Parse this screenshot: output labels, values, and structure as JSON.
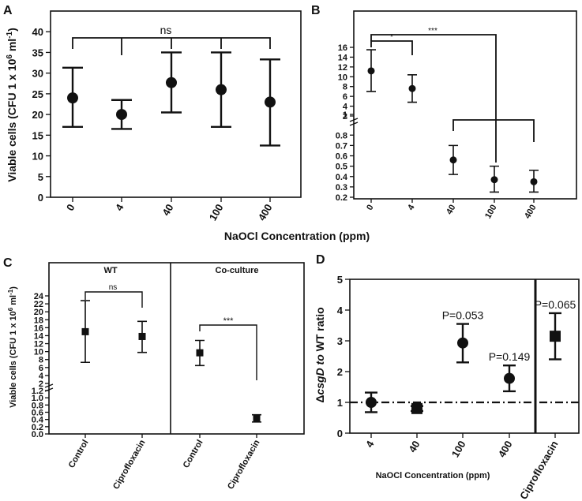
{
  "chart_data": [
    {
      "panel": "A",
      "type": "scatter",
      "ylabel": "Viable cells (CFU 1 x 10",
      "ylabel_sup1": "6",
      "ylabel_mid": " ml",
      "ylabel_sup2": "-1",
      "ylabel_end": ")",
      "ylim": [
        0,
        45
      ],
      "yticks": [
        0,
        5,
        10,
        15,
        20,
        25,
        30,
        35,
        40
      ],
      "categories": [
        "0",
        "4",
        "40",
        "100",
        "400"
      ],
      "series": [
        {
          "name": "viable cells",
          "values": [
            24.0,
            20.0,
            27.7,
            26.0,
            23.0
          ],
          "err_low": [
            17.0,
            16.5,
            20.5,
            17.0,
            12.5
          ],
          "err_high": [
            31.3,
            23.5,
            35.0,
            35.0,
            33.3
          ]
        }
      ],
      "annotations": [
        {
          "text": "ns",
          "span": [
            "0",
            "400"
          ]
        }
      ]
    },
    {
      "panel": "B",
      "type": "scatter",
      "ytick_labels_upper": [
        "2",
        "4",
        "6",
        "8",
        "10",
        "12",
        "14",
        "16"
      ],
      "ytick_labels_lower": [
        "0.2",
        "0.3",
        "0.4",
        "0.5",
        "0.6",
        "0.7",
        "0.8",
        "1"
      ],
      "categories": [
        "0",
        "4",
        "40",
        "100",
        "400"
      ],
      "series": [
        {
          "name": "viable cells",
          "values": [
            11.2,
            7.6,
            0.56,
            0.37,
            0.35
          ],
          "err_low": [
            7.0,
            4.8,
            0.42,
            0.25,
            0.25
          ],
          "err_high": [
            15.5,
            10.4,
            0.7,
            0.5,
            0.46
          ]
        }
      ],
      "annotations": [
        {
          "text": "*",
          "span": [
            "0",
            "4"
          ]
        },
        {
          "text": "***",
          "span": [
            "0",
            "100"
          ]
        }
      ]
    },
    {
      "panel": "C",
      "type": "scatter",
      "ylabel": "Viable cells (CFU 1 x 10",
      "ylabel_sup1": "6",
      "ylabel_mid": " ml",
      "ylabel_sup2": "-1",
      "ylabel_end": ")",
      "ytick_labels_upper": [
        "2",
        "4",
        "6",
        "8",
        "10",
        "12",
        "14",
        "16",
        "18",
        "20",
        "22",
        "24"
      ],
      "ytick_labels_lower": [
        "0.0",
        "0.2",
        "0.4",
        "0.6",
        "0.8",
        "1.0",
        "1.2"
      ],
      "groups": [
        "WT",
        "Co-culture"
      ],
      "categories": [
        "Control",
        "Ciprofloxacin",
        "Control",
        "Ciprofloxacin"
      ],
      "series": [
        {
          "name": "viable cells",
          "values": [
            15.0,
            13.8,
            9.7,
            0.43
          ],
          "err_low": [
            7.3,
            9.8,
            6.5,
            0.33
          ],
          "err_high": [
            22.8,
            17.6,
            12.8,
            0.53
          ]
        }
      ],
      "annotations": [
        {
          "text": "ns",
          "span": [
            "Control",
            "Ciprofloxacin"
          ],
          "group": "WT"
        },
        {
          "text": "***",
          "span": [
            "Control",
            "Ciprofloxacin"
          ],
          "group": "Co-culture"
        }
      ]
    },
    {
      "panel": "D",
      "type": "scatter",
      "ylabel_prefix": "Δ",
      "ylabel_italic": "csgD to",
      "ylabel_rest": " WT ratio",
      "xlabel": "NaOCl Concentration (ppm)",
      "ylim": [
        0,
        5
      ],
      "yticks": [
        0,
        1,
        2,
        3,
        4,
        5
      ],
      "categories": [
        "4",
        "40",
        "100",
        "400",
        "Ciprofloxacin"
      ],
      "series": [
        {
          "name": "ratio",
          "values": [
            1.0,
            0.8,
            2.93,
            1.78,
            3.15
          ],
          "err_low": [
            0.68,
            0.72,
            2.3,
            1.36,
            2.4
          ],
          "err_high": [
            1.32,
            0.88,
            3.55,
            2.2,
            3.9
          ]
        }
      ],
      "reference_line": 1,
      "pvalues": [
        {
          "category": "100",
          "text": "P=0.053"
        },
        {
          "category": "400",
          "text": "P=0.149"
        },
        {
          "category": "Ciprofloxacin",
          "text": "P=0.065"
        }
      ]
    }
  ],
  "labels": {
    "panel_a": "A",
    "panel_b": "B",
    "panel_c": "C",
    "panel_d": "D",
    "ab_xlabel": "NaOCl Concentration (ppm)"
  }
}
